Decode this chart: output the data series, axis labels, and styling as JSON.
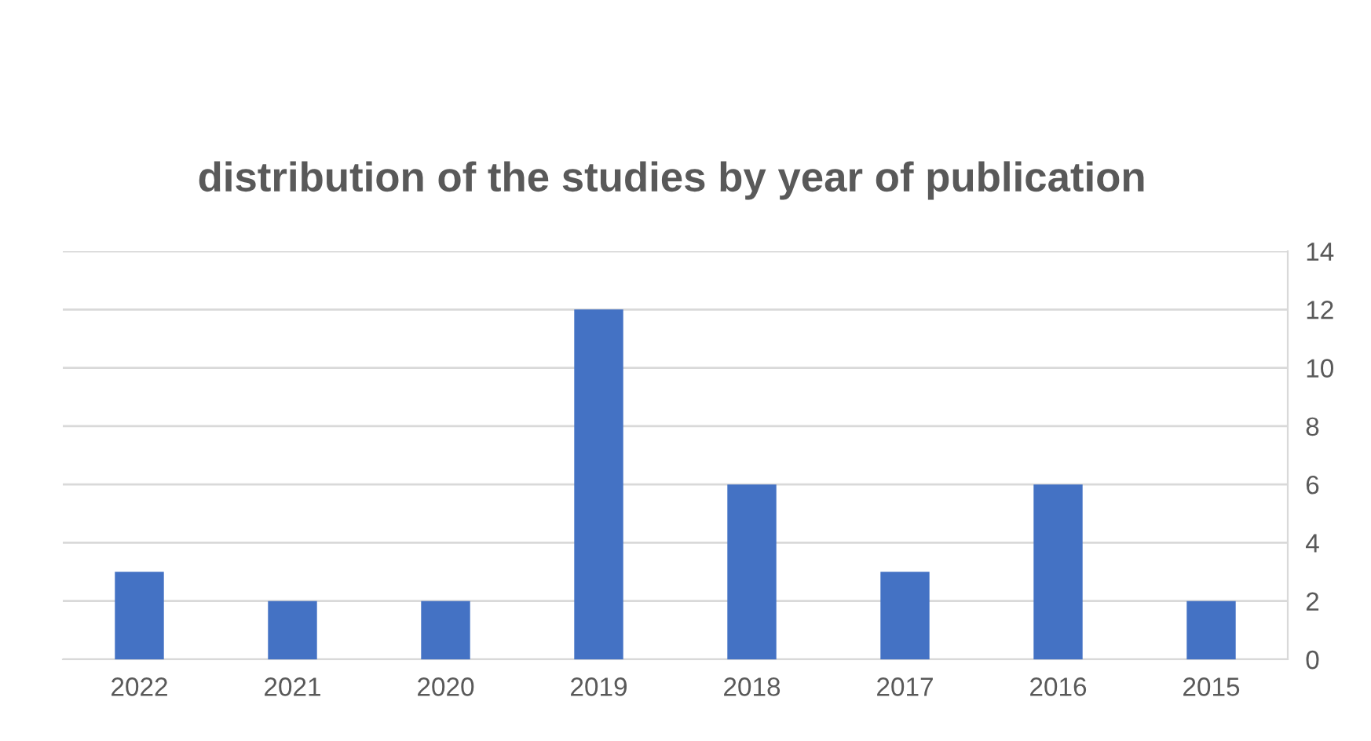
{
  "chart_data": {
    "type": "bar",
    "title": "distribution of the studies by year of publication",
    "categories": [
      "2022",
      "2021",
      "2020",
      "2019",
      "2018",
      "2017",
      "2016",
      "2015"
    ],
    "values": [
      3,
      2,
      2,
      12,
      6,
      3,
      6,
      2
    ],
    "color": "#4472c4",
    "ylim": [
      0,
      14
    ],
    "yticks": [
      0,
      2,
      4,
      6,
      8,
      10,
      12,
      14
    ],
    "grid": "y",
    "legend": false
  }
}
